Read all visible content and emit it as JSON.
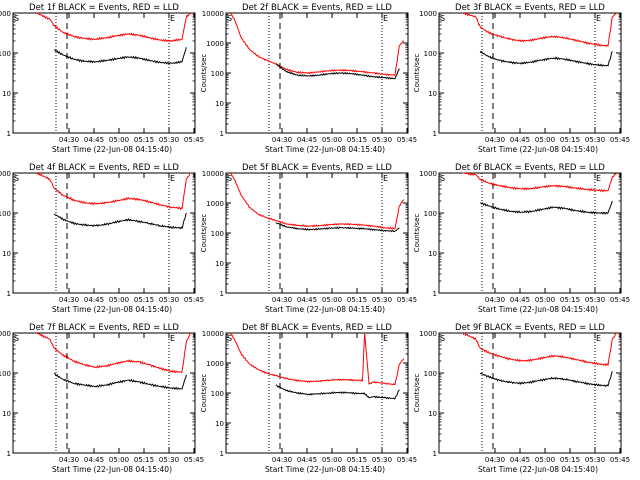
{
  "chart_data": [
    {
      "type": "line",
      "title": "Det 1f BLACK = Events, RED = LLD",
      "xlabel": "Start Time (22-Jun-08 04:15:40)",
      "ylabel": "Counts/sec",
      "x_ticks": [
        "04:30",
        "04:45",
        "05:00",
        "05:15",
        "05:30",
        "05:45"
      ],
      "y_ticks": [
        "1",
        "10",
        "100",
        "1000"
      ],
      "ylim": [
        1,
        1000
      ],
      "yscale": "log",
      "x_minutes": [
        11,
        17,
        19,
        23,
        28,
        33,
        38,
        43,
        48,
        53,
        58,
        63,
        68,
        73,
        78,
        80,
        82
      ],
      "series": [
        {
          "color": "#ff0000",
          "values": [
            1000,
            700,
            480,
            330,
            260,
            230,
            220,
            240,
            270,
            300,
            280,
            240,
            210,
            200,
            220,
            800,
            1000
          ]
        },
        {
          "color": "#000000",
          "values": [
            null,
            null,
            120,
            90,
            70,
            62,
            60,
            65,
            72,
            80,
            75,
            65,
            58,
            55,
            60,
            140,
            null
          ]
        }
      ],
      "markers": {
        "S": "S",
        "E": "E"
      }
    },
    {
      "type": "line",
      "title": "Det 2f BLACK = Events, RED = LLD",
      "xlabel": "Start Time (22-Jun-08 04:15:40)",
      "ylabel": "Counts/sec",
      "x_ticks": [
        "04:30",
        "04:45",
        "05:00",
        "05:15",
        "05:30",
        "05:45"
      ],
      "y_ticks": [
        "1",
        "10",
        "100",
        "1000",
        "10000"
      ],
      "ylim": [
        1,
        10000
      ],
      "yscale": "log",
      "x_minutes": [
        2,
        4,
        7,
        11,
        15,
        19,
        23,
        28,
        33,
        38,
        43,
        48,
        53,
        58,
        63,
        68,
        73,
        78,
        80,
        82
      ],
      "series": [
        {
          "color": "#ff0000",
          "values": [
            10000,
            6000,
            1500,
            600,
            350,
            260,
            200,
            130,
            105,
            100,
            110,
            120,
            125,
            120,
            110,
            100,
            90,
            85,
            800,
            1200
          ]
        },
        {
          "color": "#000000",
          "values": [
            null,
            null,
            null,
            null,
            null,
            null,
            200,
            110,
            85,
            80,
            85,
            95,
            100,
            95,
            85,
            75,
            70,
            65,
            140,
            null
          ]
        }
      ],
      "markers": {
        "S": "S",
        "E": "E"
      }
    },
    {
      "type": "line",
      "title": "Det 3f BLACK = Events, RED = LLD",
      "xlabel": "Start Time (22-Jun-08 04:15:40)",
      "ylabel": "Counts/sec",
      "x_ticks": [
        "04:30",
        "04:45",
        "05:00",
        "05:15",
        "05:30",
        "05:45"
      ],
      "y_ticks": [
        "1",
        "10",
        "100",
        "1000"
      ],
      "ylim": [
        1,
        1000
      ],
      "yscale": "log",
      "x_minutes": [
        11,
        17,
        19,
        23,
        28,
        33,
        38,
        43,
        48,
        53,
        58,
        63,
        68,
        73,
        78,
        80,
        82
      ],
      "series": [
        {
          "color": "#ff0000",
          "values": [
            1000,
            800,
            450,
            320,
            260,
            220,
            200,
            210,
            240,
            260,
            240,
            210,
            180,
            160,
            150,
            800,
            1000
          ]
        },
        {
          "color": "#000000",
          "values": [
            null,
            null,
            110,
            80,
            65,
            58,
            55,
            60,
            68,
            75,
            70,
            62,
            55,
            50,
            48,
            110,
            null
          ]
        }
      ],
      "markers": {
        "S": "S",
        "E": "E"
      }
    },
    {
      "type": "line",
      "title": "Det 4f BLACK = Events, RED = LLD",
      "xlabel": "Start Time (22-Jun-08 04:15:40)",
      "ylabel": "Counts/sec",
      "x_ticks": [
        "04:30",
        "04:45",
        "05:00",
        "05:15",
        "05:30",
        "05:45"
      ],
      "y_ticks": [
        "1",
        "10",
        "100",
        "1000"
      ],
      "ylim": [
        1,
        1000
      ],
      "yscale": "log",
      "x_minutes": [
        11,
        17,
        19,
        23,
        28,
        33,
        38,
        43,
        48,
        53,
        58,
        63,
        68,
        73,
        78,
        80,
        82
      ],
      "series": [
        {
          "color": "#ff0000",
          "values": [
            1000,
            700,
            420,
            280,
            210,
            180,
            170,
            180,
            200,
            230,
            220,
            190,
            160,
            140,
            130,
            700,
            1000
          ]
        },
        {
          "color": "#000000",
          "values": [
            null,
            null,
            95,
            70,
            55,
            50,
            48,
            52,
            60,
            68,
            62,
            55,
            48,
            44,
            42,
            100,
            null
          ]
        }
      ],
      "markers": {
        "S": "S",
        "E": "E"
      }
    },
    {
      "type": "line",
      "title": "Det 5f BLACK = Events, RED = LLD",
      "xlabel": "Start Time (22-Jun-08 04:15:40)",
      "ylabel": "Counts/sec",
      "x_ticks": [
        "04:30",
        "04:45",
        "05:00",
        "05:15",
        "05:30",
        "05:45"
      ],
      "y_ticks": [
        "1",
        "10",
        "100",
        "1000",
        "10000"
      ],
      "ylim": [
        1,
        10000
      ],
      "yscale": "log",
      "x_minutes": [
        2,
        4,
        7,
        11,
        15,
        19,
        23,
        28,
        33,
        38,
        43,
        48,
        53,
        58,
        63,
        68,
        73,
        78,
        80,
        82
      ],
      "series": [
        {
          "color": "#ff0000",
          "values": [
            10000,
            6000,
            1800,
            700,
            420,
            320,
            260,
            200,
            180,
            170,
            175,
            190,
            200,
            195,
            185,
            170,
            150,
            140,
            800,
            1300
          ]
        },
        {
          "color": "#000000",
          "values": [
            null,
            null,
            null,
            null,
            null,
            null,
            220,
            160,
            140,
            130,
            135,
            145,
            150,
            145,
            140,
            130,
            120,
            115,
            150,
            null
          ]
        }
      ],
      "markers": {
        "S": "S",
        "E": "E"
      }
    },
    {
      "type": "line",
      "title": "Det 6f BLACK = Events, RED = LLD",
      "xlabel": "Start Time (22-Jun-08 04:15:40)",
      "ylabel": "Counts/sec",
      "x_ticks": [
        "04:30",
        "04:45",
        "05:00",
        "05:15",
        "05:30",
        "05:45"
      ],
      "y_ticks": [
        "1",
        "10",
        "100",
        "1000"
      ],
      "ylim": [
        1,
        1000
      ],
      "yscale": "log",
      "x_minutes": [
        11,
        17,
        19,
        23,
        28,
        33,
        38,
        43,
        48,
        53,
        58,
        63,
        68,
        73,
        78,
        80,
        82
      ],
      "series": [
        {
          "color": "#ff0000",
          "values": [
            1000,
            900,
            700,
            560,
            480,
            430,
            400,
            410,
            450,
            480,
            460,
            420,
            390,
            370,
            360,
            800,
            1000
          ]
        },
        {
          "color": "#000000",
          "values": [
            null,
            null,
            180,
            150,
            125,
            110,
            105,
            110,
            125,
            140,
            130,
            115,
            105,
            100,
            100,
            200,
            null
          ]
        }
      ],
      "markers": {
        "S": "S",
        "E": "E"
      }
    },
    {
      "type": "line",
      "title": "Det 7f BLACK = Events, RED = LLD",
      "xlabel": "Start Time (22-Jun-08 04:15:40)",
      "ylabel": "Counts/sec",
      "x_ticks": [
        "04:30",
        "04:45",
        "05:00",
        "05:15",
        "05:30",
        "05:45"
      ],
      "y_ticks": [
        "1",
        "10",
        "100",
        "1000"
      ],
      "ylim": [
        1,
        1000
      ],
      "yscale": "log",
      "x_minutes": [
        11,
        17,
        19,
        23,
        28,
        33,
        38,
        43,
        48,
        53,
        58,
        63,
        68,
        73,
        78,
        80,
        82
      ],
      "series": [
        {
          "color": "#ff0000",
          "values": [
            1000,
            700,
            420,
            280,
            200,
            160,
            140,
            150,
            175,
            200,
            190,
            160,
            130,
            110,
            105,
            600,
            1000
          ]
        },
        {
          "color": "#000000",
          "values": [
            null,
            null,
            95,
            70,
            55,
            50,
            46,
            50,
            58,
            66,
            60,
            52,
            46,
            42,
            40,
            90,
            null
          ]
        }
      ],
      "markers": {
        "S": "S",
        "E": "E"
      }
    },
    {
      "type": "line",
      "title": "Det 8f BLACK = Events, RED = LLD",
      "xlabel": "Start Time (22-Jun-08 04:15:40)",
      "ylabel": "Counts/sec",
      "x_ticks": [
        "04:30",
        "04:45",
        "05:00",
        "05:15",
        "05:30",
        "05:45"
      ],
      "y_ticks": [
        "1",
        "10",
        "100",
        "1000",
        "10000"
      ],
      "ylim": [
        1,
        10000
      ],
      "yscale": "log",
      "x_minutes": [
        2,
        4,
        7,
        11,
        15,
        19,
        23,
        28,
        33,
        38,
        43,
        48,
        53,
        58,
        63,
        64,
        66,
        68,
        73,
        78,
        80,
        82
      ],
      "series": [
        {
          "color": "#ff0000",
          "values": [
            10000,
            6000,
            2000,
            900,
            600,
            450,
            380,
            300,
            260,
            240,
            250,
            270,
            280,
            270,
            260,
            10000,
            200,
            230,
            210,
            190,
            900,
            1400
          ]
        },
        {
          "color": "#000000",
          "values": [
            null,
            null,
            null,
            null,
            null,
            null,
            180,
            120,
            100,
            90,
            95,
            100,
            105,
            100,
            95,
            95,
            70,
            75,
            70,
            65,
            130,
            null
          ]
        }
      ],
      "markers": {
        "S": "S",
        "E": "E"
      }
    },
    {
      "type": "line",
      "title": "Det 9f BLACK = Events, RED = LLD",
      "xlabel": "Start Time (22-Jun-08 04:15:40)",
      "ylabel": "Counts/sec",
      "x_ticks": [
        "04:30",
        "04:45",
        "05:00",
        "05:15",
        "05:30",
        "05:45"
      ],
      "y_ticks": [
        "1",
        "10",
        "100",
        "1000"
      ],
      "ylim": [
        1,
        1000
      ],
      "yscale": "log",
      "x_minutes": [
        11,
        17,
        19,
        23,
        28,
        33,
        38,
        43,
        48,
        53,
        58,
        63,
        68,
        73,
        78,
        80,
        82
      ],
      "series": [
        {
          "color": "#ff0000",
          "values": [
            1000,
            700,
            420,
            320,
            260,
            220,
            200,
            210,
            240,
            270,
            250,
            220,
            190,
            170,
            160,
            700,
            1000
          ]
        },
        {
          "color": "#000000",
          "values": [
            null,
            null,
            100,
            80,
            65,
            58,
            55,
            60,
            68,
            75,
            70,
            62,
            55,
            50,
            48,
            110,
            null
          ]
        }
      ],
      "markers": {
        "S": "S",
        "E": "E"
      }
    }
  ]
}
